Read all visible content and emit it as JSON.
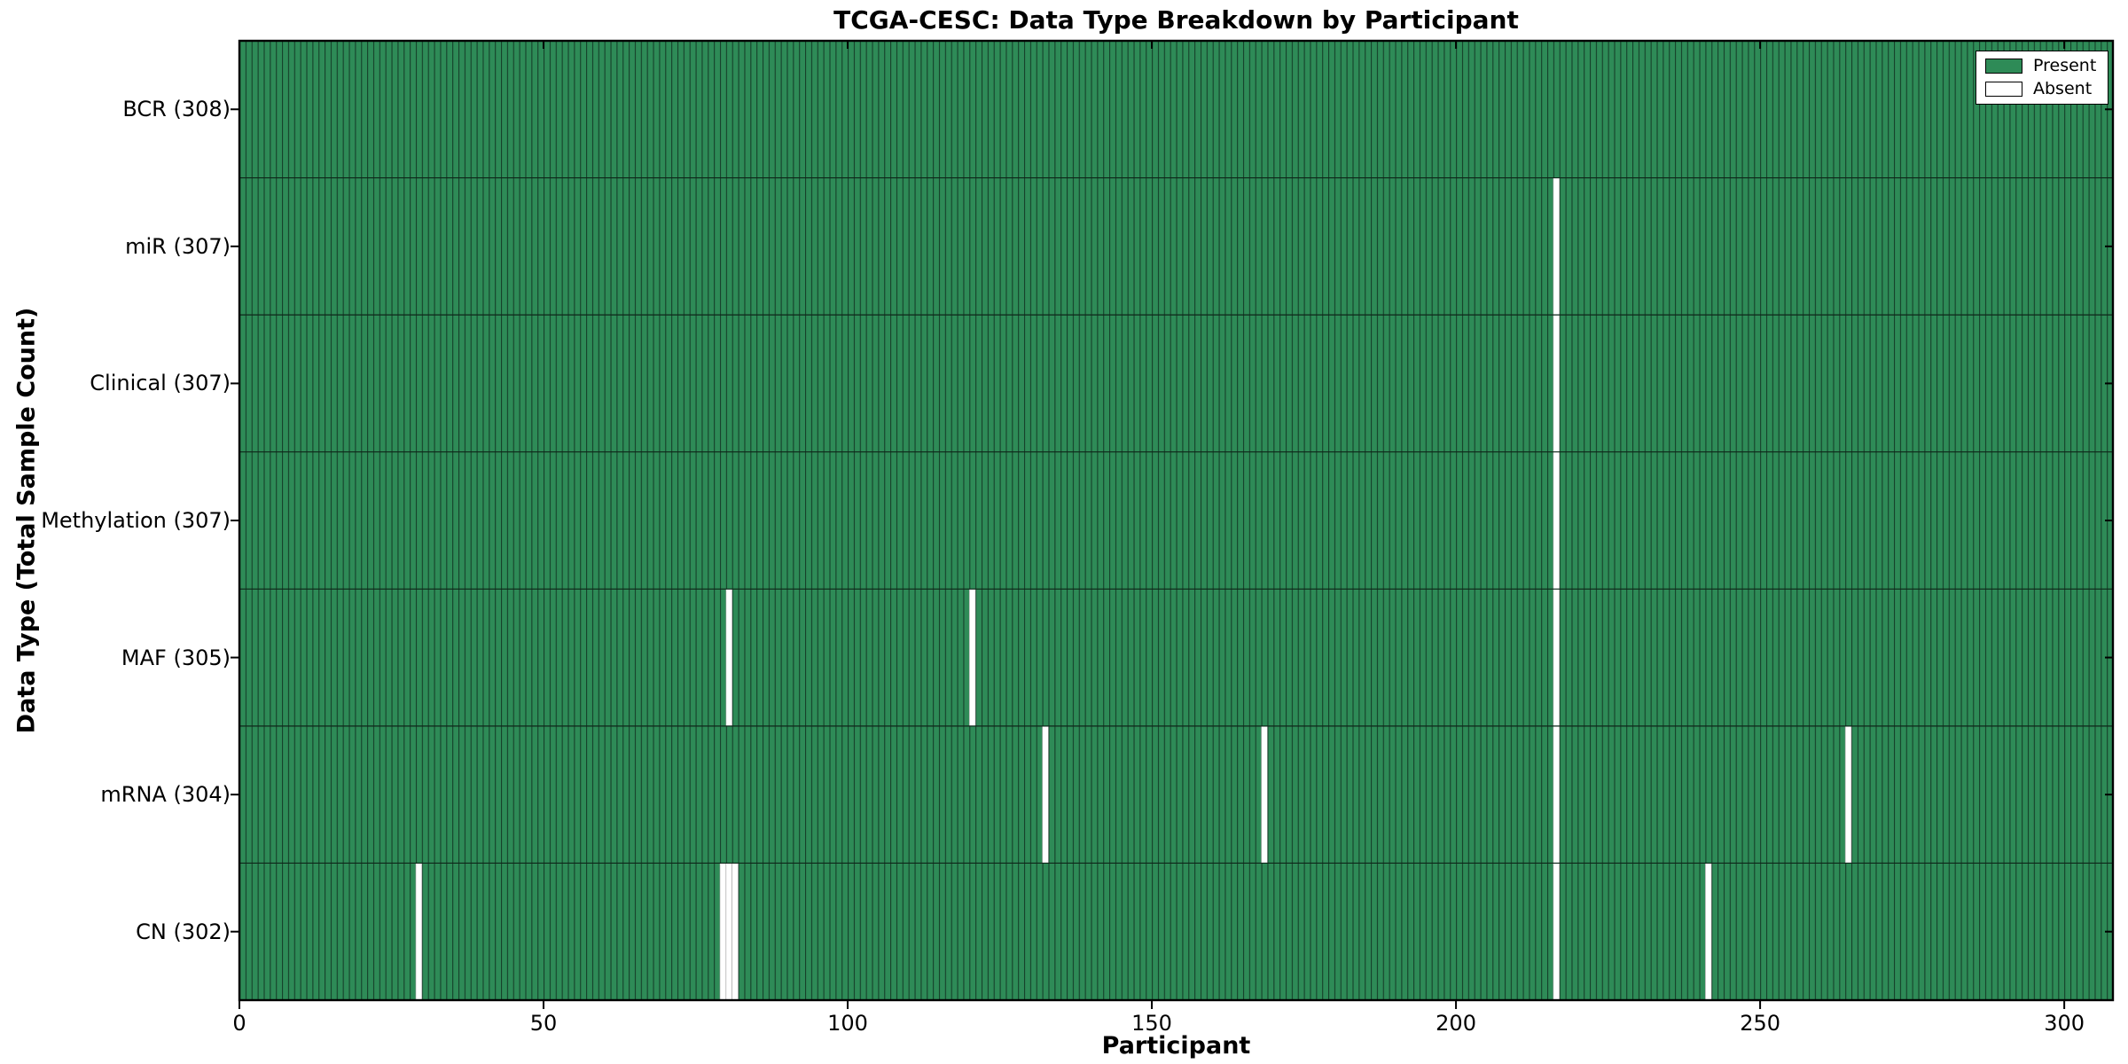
{
  "chart_data": {
    "type": "heatmap",
    "title": "TCGA-CESC: Data Type Breakdown by Participant",
    "xlabel": "Participant",
    "ylabel": "Data Type (Total Sample Count)",
    "x_ticks": [
      0,
      50,
      100,
      150,
      200,
      250,
      300
    ],
    "x_range": [
      0,
      308
    ],
    "n_participants": 308,
    "grid": "row-dividers-only",
    "legend_position": "upper right",
    "legend": {
      "present_label": "Present",
      "absent_label": "Absent"
    },
    "colors": {
      "present": "#2e8b57",
      "present_edge": "#16402a",
      "absent": "#ffffff",
      "absent_edge": "#999999",
      "row_divider": "#0e2619",
      "axis": "#000000"
    },
    "rows": [
      {
        "label": "BCR",
        "total_samples": 308,
        "display": "BCR (308)",
        "absent_participants": []
      },
      {
        "label": "miR",
        "total_samples": 307,
        "display": "miR (307)",
        "absent_participants": [
          216
        ]
      },
      {
        "label": "Clinical",
        "total_samples": 307,
        "display": "Clinical (307)",
        "absent_participants": [
          216
        ]
      },
      {
        "label": "Methylation",
        "total_samples": 307,
        "display": "Methylation (307)",
        "absent_participants": [
          216
        ]
      },
      {
        "label": "MAF",
        "total_samples": 305,
        "display": "MAF (305)",
        "absent_participants": [
          80,
          120,
          216
        ]
      },
      {
        "label": "mRNA",
        "total_samples": 304,
        "display": "mRNA (304)",
        "absent_participants": [
          132,
          168,
          216,
          264
        ]
      },
      {
        "label": "CN",
        "total_samples": 302,
        "display": "CN (302)",
        "absent_participants": [
          29,
          79,
          80,
          81,
          216,
          241
        ]
      }
    ]
  }
}
